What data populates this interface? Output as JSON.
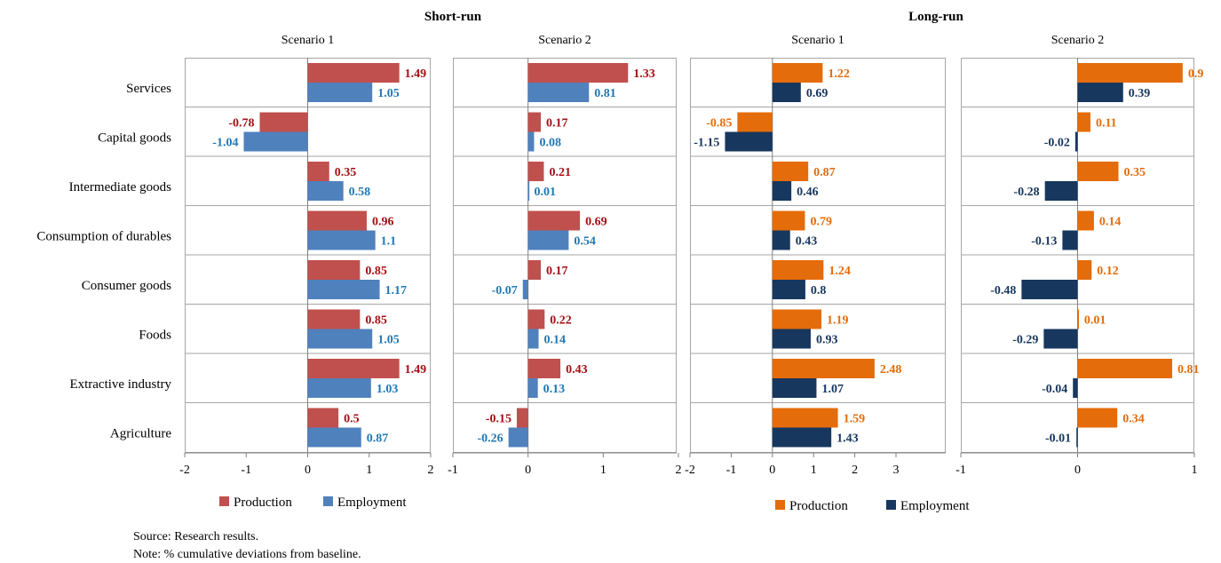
{
  "source_note": "Source: Research results.",
  "baseline_note": "Note: % cumulative deviations from baseline.",
  "groups": [
    {
      "title": "Short-run",
      "legend": {
        "production": "Production",
        "employment": "Employment"
      }
    },
    {
      "title": "Long-run",
      "legend": {
        "production": "Production",
        "employment": "Employment"
      }
    }
  ],
  "colors": {
    "short_production": "#c0504d",
    "short_production_label": "#a50f15",
    "short_employment": "#4f81bd",
    "short_employment_label": "#1f78b4",
    "long_production": "#e46c0a",
    "long_production_label": "#e46c0a",
    "long_employment": "#17375e",
    "long_employment_label": "#17375e",
    "panel_border": "#a6a6a6"
  },
  "chart_data": [
    {
      "type": "bar",
      "orientation": "horizontal",
      "group": "Short-run",
      "title": "Scenario 1",
      "categories": [
        "Services",
        "Capital goods",
        "Intermediate goods",
        "Consumption of durables",
        "Consumer goods",
        "Foods",
        "Extractive industry",
        "Agriculture"
      ],
      "series": [
        {
          "name": "Production",
          "values": [
            1.49,
            -0.78,
            0.35,
            0.96,
            0.85,
            0.85,
            1.49,
            0.5
          ],
          "labels": [
            "1.49",
            "-0.78",
            "0.35",
            "0.96",
            "0.85",
            "0.85",
            "1.49",
            "0.5"
          ]
        },
        {
          "name": "Employment",
          "values": [
            1.05,
            -1.04,
            0.58,
            1.1,
            1.17,
            1.05,
            1.03,
            0.87
          ],
          "labels": [
            "1.05",
            "-1.04",
            "0.58",
            "1.1",
            "1.17",
            "1.05",
            "1.03",
            "0.87"
          ]
        }
      ],
      "xlim": [
        -2,
        2
      ],
      "xticks": [
        "-2",
        "-1",
        "0",
        "1",
        "2"
      ],
      "legend": "bottom"
    },
    {
      "type": "bar",
      "orientation": "horizontal",
      "group": "Short-run",
      "title": "Scenario 2",
      "categories": [
        "Services",
        "Capital goods",
        "Intermediate goods",
        "Consumption of durables",
        "Consumer goods",
        "Foods",
        "Extractive industry",
        "Agriculture"
      ],
      "series": [
        {
          "name": "Production",
          "values": [
            1.33,
            0.17,
            0.21,
            0.69,
            0.17,
            0.22,
            0.43,
            -0.15
          ],
          "labels": [
            "1.33",
            "0.17",
            "0.21",
            "0.69",
            "0.17",
            "0.22",
            "0.43",
            "-0.15"
          ]
        },
        {
          "name": "Employment",
          "values": [
            0.81,
            0.08,
            0.01,
            0.54,
            -0.07,
            0.14,
            0.13,
            -0.26
          ],
          "labels": [
            "0.81",
            "0.08",
            "0.01",
            "0.54",
            "-0.07",
            "0.14",
            "0.13",
            "-0.26"
          ]
        }
      ],
      "xlim": [
        -1,
        2
      ],
      "xticks": [
        "-1",
        "0",
        "1",
        "2"
      ],
      "legend": "bottom"
    },
    {
      "type": "bar",
      "orientation": "horizontal",
      "group": "Long-run",
      "title": "Scenario 1",
      "categories": [
        "Services",
        "Capital goods",
        "Intermediate goods",
        "Consumption of durables",
        "Consumer goods",
        "Foods",
        "Extractive industry",
        "Agriculture"
      ],
      "series": [
        {
          "name": "Production",
          "values": [
            1.22,
            -0.85,
            0.87,
            0.79,
            1.24,
            1.19,
            2.48,
            1.59
          ],
          "labels": [
            "1.22",
            "-0.85",
            "0.87",
            "0.79",
            "1.24",
            "1.19",
            "2.48",
            "1.59"
          ]
        },
        {
          "name": "Employment",
          "values": [
            0.69,
            -1.15,
            0.46,
            0.43,
            0.8,
            0.93,
            1.07,
            1.43
          ],
          "labels": [
            "0.69",
            "-1.15",
            "0.46",
            "0.43",
            "0.8",
            "0.93",
            "1.07",
            "1.43"
          ]
        }
      ],
      "xlim": [
        -2,
        3
      ],
      "xticks": [
        "-2",
        "-1",
        "0",
        "1",
        "2",
        "3"
      ],
      "legend": "bottom"
    },
    {
      "type": "bar",
      "orientation": "horizontal",
      "group": "Long-run",
      "title": "Scenario 2",
      "categories": [
        "Services",
        "Capital goods",
        "Intermediate goods",
        "Consumption of durables",
        "Consumer goods",
        "Foods",
        "Extractive industry",
        "Agriculture"
      ],
      "series": [
        {
          "name": "Production",
          "values": [
            0.9,
            0.11,
            0.35,
            0.14,
            0.12,
            0.01,
            0.81,
            0.34
          ],
          "labels": [
            "0.9",
            "0.11",
            "0.35",
            "0.14",
            "0.12",
            "0.01",
            "0.81",
            "0.34"
          ]
        },
        {
          "name": "Employment",
          "values": [
            0.39,
            -0.02,
            -0.28,
            -0.13,
            -0.48,
            -0.29,
            -0.04,
            -0.01
          ],
          "labels": [
            "0.39",
            "-0.02",
            "-0.28",
            "-0.13",
            "-0.48",
            "-0.29",
            "-0.04",
            "-0.01"
          ]
        }
      ],
      "xlim": [
        -1,
        1
      ],
      "xticks": [
        "-1",
        "0",
        "1"
      ],
      "legend": "bottom"
    }
  ]
}
